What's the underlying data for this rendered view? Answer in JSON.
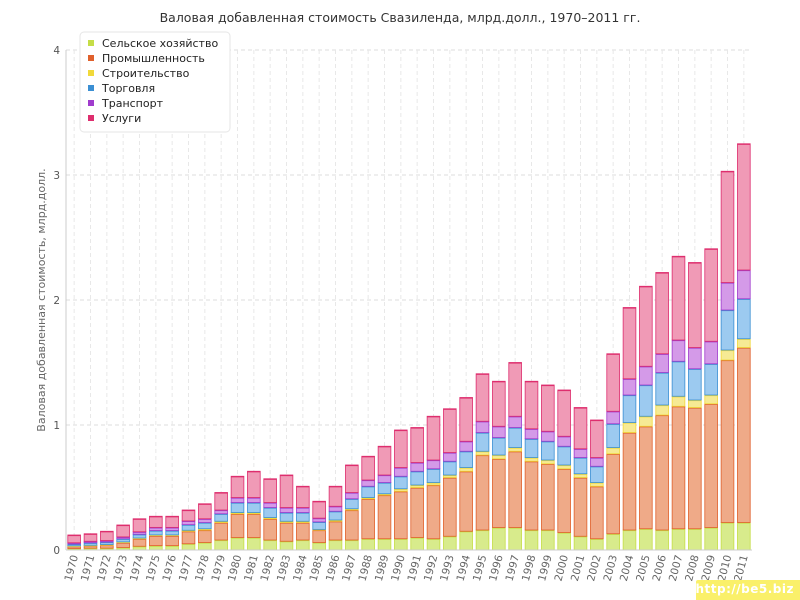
{
  "watermark": "http://be5.biz",
  "chart_data": {
    "type": "bar",
    "stacked": true,
    "title": "Валовая добавленная стоимость Свазиленда, млрд.долл., 1970–2011 гг.",
    "xlabel": "",
    "ylabel": "Валовая добавленная стоимость, млрд.долл.",
    "ylim": [
      0,
      4
    ],
    "yticks": [
      "0",
      "1",
      "2",
      "3",
      "4"
    ],
    "grid": true,
    "legend_position": "top-left",
    "categories": [
      "1970",
      "1971",
      "1972",
      "1973",
      "1974",
      "1975",
      "1976",
      "1977",
      "1978",
      "1979",
      "1980",
      "1981",
      "1982",
      "1983",
      "1984",
      "1985",
      "1986",
      "1987",
      "1988",
      "1989",
      "1990",
      "1991",
      "1992",
      "1993",
      "1994",
      "1995",
      "1996",
      "1997",
      "1998",
      "1999",
      "2000",
      "2001",
      "2002",
      "2003",
      "2004",
      "2005",
      "2006",
      "2007",
      "2008",
      "2009",
      "2010",
      "2011"
    ],
    "series": [
      {
        "name": "Сельское хозяйство",
        "color": "#c5dd47",
        "fill": "#d8eb8c",
        "values": [
          0.012,
          0.015,
          0.015,
          0.02,
          0.03,
          0.035,
          0.035,
          0.05,
          0.06,
          0.08,
          0.1,
          0.1,
          0.08,
          0.07,
          0.08,
          0.06,
          0.08,
          0.08,
          0.09,
          0.09,
          0.09,
          0.1,
          0.09,
          0.11,
          0.15,
          0.16,
          0.18,
          0.18,
          0.16,
          0.16,
          0.14,
          0.11,
          0.09,
          0.13,
          0.16,
          0.17,
          0.16,
          0.17,
          0.17,
          0.18,
          0.22,
          0.22
        ]
      },
      {
        "name": "Промышленность",
        "color": "#e0602c",
        "fill": "#efaa88",
        "values": [
          0.018,
          0.02,
          0.025,
          0.04,
          0.06,
          0.08,
          0.08,
          0.1,
          0.1,
          0.14,
          0.19,
          0.19,
          0.17,
          0.15,
          0.14,
          0.1,
          0.15,
          0.24,
          0.32,
          0.35,
          0.38,
          0.4,
          0.43,
          0.47,
          0.48,
          0.6,
          0.55,
          0.61,
          0.55,
          0.53,
          0.51,
          0.47,
          0.42,
          0.64,
          0.78,
          0.82,
          0.92,
          0.98,
          0.97,
          0.99,
          1.3,
          1.4
        ]
      },
      {
        "name": "Строительство",
        "color": "#f1d93a",
        "fill": "#f6ea94",
        "values": [
          0.003,
          0.003,
          0.004,
          0.005,
          0.006,
          0.006,
          0.006,
          0.008,
          0.01,
          0.01,
          0.01,
          0.01,
          0.01,
          0.01,
          0.01,
          0.005,
          0.01,
          0.01,
          0.01,
          0.01,
          0.02,
          0.02,
          0.02,
          0.02,
          0.03,
          0.03,
          0.03,
          0.03,
          0.03,
          0.03,
          0.03,
          0.03,
          0.03,
          0.05,
          0.08,
          0.08,
          0.08,
          0.08,
          0.06,
          0.07,
          0.08,
          0.07
        ]
      },
      {
        "name": "Торговля",
        "color": "#3b8fd3",
        "fill": "#9ccaf0",
        "values": [
          0.015,
          0.02,
          0.02,
          0.025,
          0.03,
          0.035,
          0.035,
          0.045,
          0.05,
          0.06,
          0.08,
          0.08,
          0.08,
          0.07,
          0.07,
          0.06,
          0.07,
          0.08,
          0.09,
          0.09,
          0.1,
          0.11,
          0.11,
          0.11,
          0.13,
          0.15,
          0.14,
          0.16,
          0.15,
          0.15,
          0.15,
          0.13,
          0.13,
          0.19,
          0.22,
          0.25,
          0.26,
          0.28,
          0.25,
          0.25,
          0.32,
          0.32
        ]
      },
      {
        "name": "Транспорт",
        "color": "#a03ccd",
        "fill": "#d49ae8",
        "values": [
          0.01,
          0.012,
          0.012,
          0.015,
          0.02,
          0.025,
          0.025,
          0.03,
          0.03,
          0.03,
          0.04,
          0.04,
          0.04,
          0.04,
          0.04,
          0.03,
          0.04,
          0.05,
          0.05,
          0.06,
          0.07,
          0.07,
          0.07,
          0.07,
          0.08,
          0.09,
          0.09,
          0.09,
          0.08,
          0.08,
          0.08,
          0.07,
          0.07,
          0.1,
          0.13,
          0.15,
          0.15,
          0.17,
          0.17,
          0.18,
          0.22,
          0.23
        ]
      },
      {
        "name": "Услуги",
        "color": "#de2e6e",
        "fill": "#f09ab6",
        "values": [
          0.062,
          0.06,
          0.074,
          0.095,
          0.104,
          0.089,
          0.089,
          0.087,
          0.12,
          0.14,
          0.17,
          0.21,
          0.19,
          0.26,
          0.17,
          0.135,
          0.16,
          0.22,
          0.19,
          0.23,
          0.3,
          0.28,
          0.35,
          0.35,
          0.35,
          0.38,
          0.36,
          0.43,
          0.38,
          0.37,
          0.37,
          0.33,
          0.3,
          0.46,
          0.57,
          0.64,
          0.65,
          0.67,
          0.68,
          0.74,
          0.89,
          1.01
        ]
      }
    ]
  }
}
